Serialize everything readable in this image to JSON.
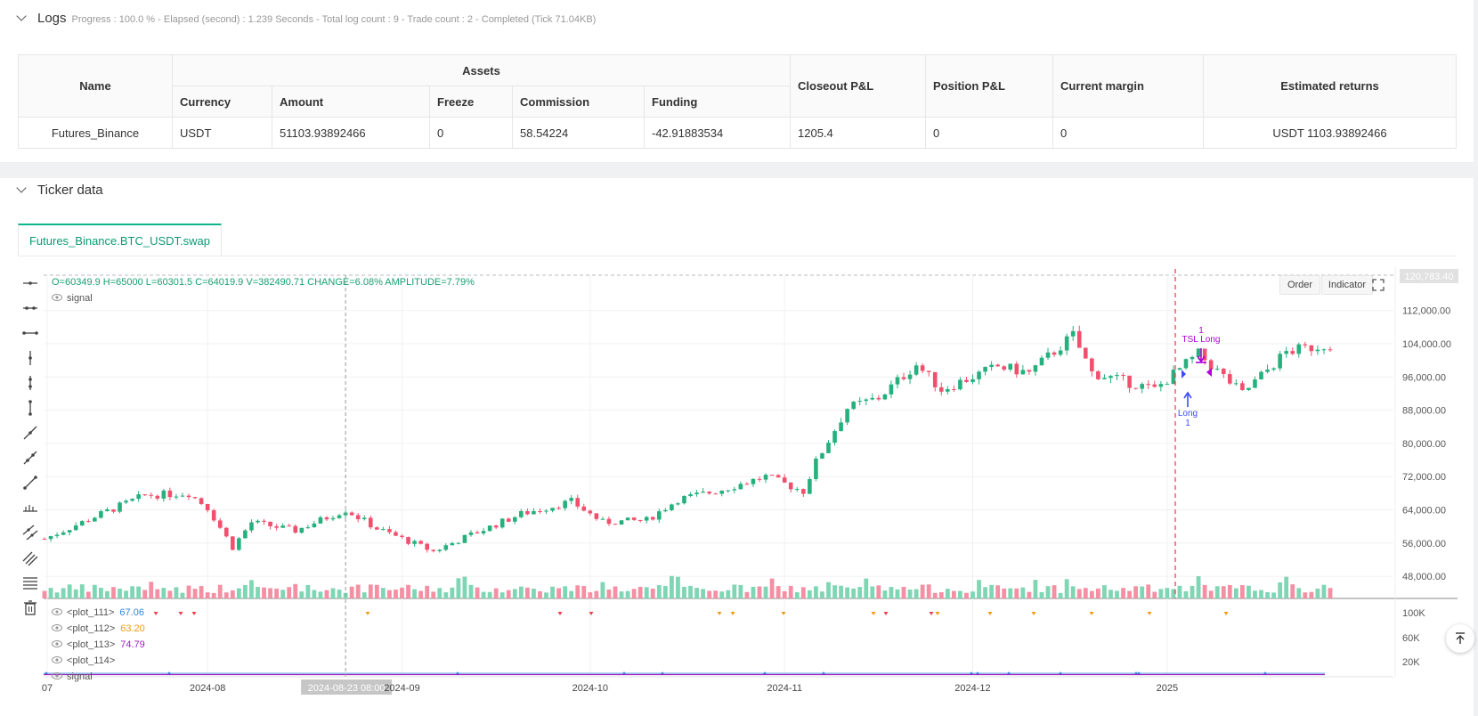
{
  "logs": {
    "title": "Logs",
    "meta": "Progress : 100.0 % - Elapsed (second) : 1.239  Seconds - Total log count : 9 - Trade count : 2 - Completed (Tick 71.04KB)"
  },
  "assets_table": {
    "name_header": "Name",
    "assets_header": "Assets",
    "sub_headers": [
      "Currency",
      "Amount",
      "Freeze",
      "Commission",
      "Funding"
    ],
    "other_headers": [
      "Closeout P&L",
      "Position P&L",
      "Current margin",
      "Estimated returns"
    ],
    "row": {
      "name": "Futures_Binance",
      "currency": "USDT",
      "amount": "51103.93892466",
      "freeze": "0",
      "commission": "58.54224",
      "funding": "-42.91883534",
      "closeout_pnl": "1205.4",
      "position_pnl": "0",
      "current_margin": "0",
      "estimated_returns": "USDT 1103.93892466"
    }
  },
  "ticker": {
    "title": "Ticker data",
    "tab_label": "Futures_Binance.BTC_USDT.swap",
    "ohlc_text": "O=60349.9 H=65000 L=60301.5 C=64019.9 V=382490.71 CHANGE=6.08% AMPLITUDE=7.79%",
    "legend_signal": "signal",
    "order_btn": "Order",
    "indicator_btn": "Indicator",
    "price_top_label": "120,783.40",
    "crosshair_date": "2024-08-23 08:00",
    "sub_legend": [
      {
        "name": "<plot_111>",
        "value": "67.06",
        "color": "#2e86de"
      },
      {
        "name": "<plot_112>",
        "value": "63.20",
        "color": "#f39c12"
      },
      {
        "name": "<plot_113>",
        "value": "74.79",
        "color": "#a020c0"
      },
      {
        "name": "<plot_114>",
        "value": "",
        "color": "#333333"
      },
      {
        "name": "signal",
        "value": "",
        "color": "#333333"
      }
    ],
    "annotations": {
      "tsl_count": "1",
      "tsl_label": "TSL Long",
      "long_label": "Long",
      "long_count": "1"
    }
  },
  "chart_data": {
    "type": "candlestick",
    "x_tick_labels": [
      "07",
      "2024-08",
      "2024-09",
      "2024-10",
      "2024-11",
      "2024-12",
      "2025"
    ],
    "y_tick_labels": [
      "112,000.00",
      "104,000.00",
      "96,000.00",
      "88,000.00",
      "80,000.00",
      "72,000.00",
      "64,000.00",
      "56,000.00",
      "48,000.00"
    ],
    "ylim": [
      43000,
      120783.4
    ],
    "volume_tick_labels": [
      "100K",
      "60K",
      "20K"
    ],
    "close_path": [
      {
        "date": "2024-07-06",
        "close": 57000
      },
      {
        "date": "2024-07-15",
        "close": 63000
      },
      {
        "date": "2024-07-22",
        "close": 67500
      },
      {
        "date": "2024-07-29",
        "close": 68000
      },
      {
        "date": "2024-08-01",
        "close": 64500
      },
      {
        "date": "2024-08-05",
        "close": 55000
      },
      {
        "date": "2024-08-08",
        "close": 61000
      },
      {
        "date": "2024-08-15",
        "close": 59000
      },
      {
        "date": "2024-08-23",
        "close": 64019.9
      },
      {
        "date": "2024-08-28",
        "close": 59500
      },
      {
        "date": "2024-09-06",
        "close": 54000
      },
      {
        "date": "2024-09-12",
        "close": 58000
      },
      {
        "date": "2024-09-20",
        "close": 63000
      },
      {
        "date": "2024-09-28",
        "close": 66000
      },
      {
        "date": "2024-10-03",
        "close": 61000
      },
      {
        "date": "2024-10-10",
        "close": 61500
      },
      {
        "date": "2024-10-15",
        "close": 66500
      },
      {
        "date": "2024-10-21",
        "close": 68500
      },
      {
        "date": "2024-10-29",
        "close": 72000
      },
      {
        "date": "2024-11-04",
        "close": 68500
      },
      {
        "date": "2024-11-06",
        "close": 75500
      },
      {
        "date": "2024-11-11",
        "close": 88500
      },
      {
        "date": "2024-11-16",
        "close": 91000
      },
      {
        "date": "2024-11-22",
        "close": 99000
      },
      {
        "date": "2024-11-26",
        "close": 93000
      },
      {
        "date": "2024-12-05",
        "close": 98500
      },
      {
        "date": "2024-12-10",
        "close": 97000
      },
      {
        "date": "2024-12-17",
        "close": 106000
      },
      {
        "date": "2024-12-20",
        "close": 97000
      },
      {
        "date": "2024-12-30",
        "close": 93000
      },
      {
        "date": "2025-01-06",
        "close": 101500
      },
      {
        "date": "2025-01-13",
        "close": 92000
      },
      {
        "date": "2025-01-20",
        "close": 102000
      },
      {
        "date": "2025-01-27",
        "close": 104000
      }
    ],
    "markers": {
      "long_entry_date": "2024-12-31",
      "tsl_exit_date": "2025-01-06",
      "crosshair_date": "2024-08-23"
    }
  }
}
